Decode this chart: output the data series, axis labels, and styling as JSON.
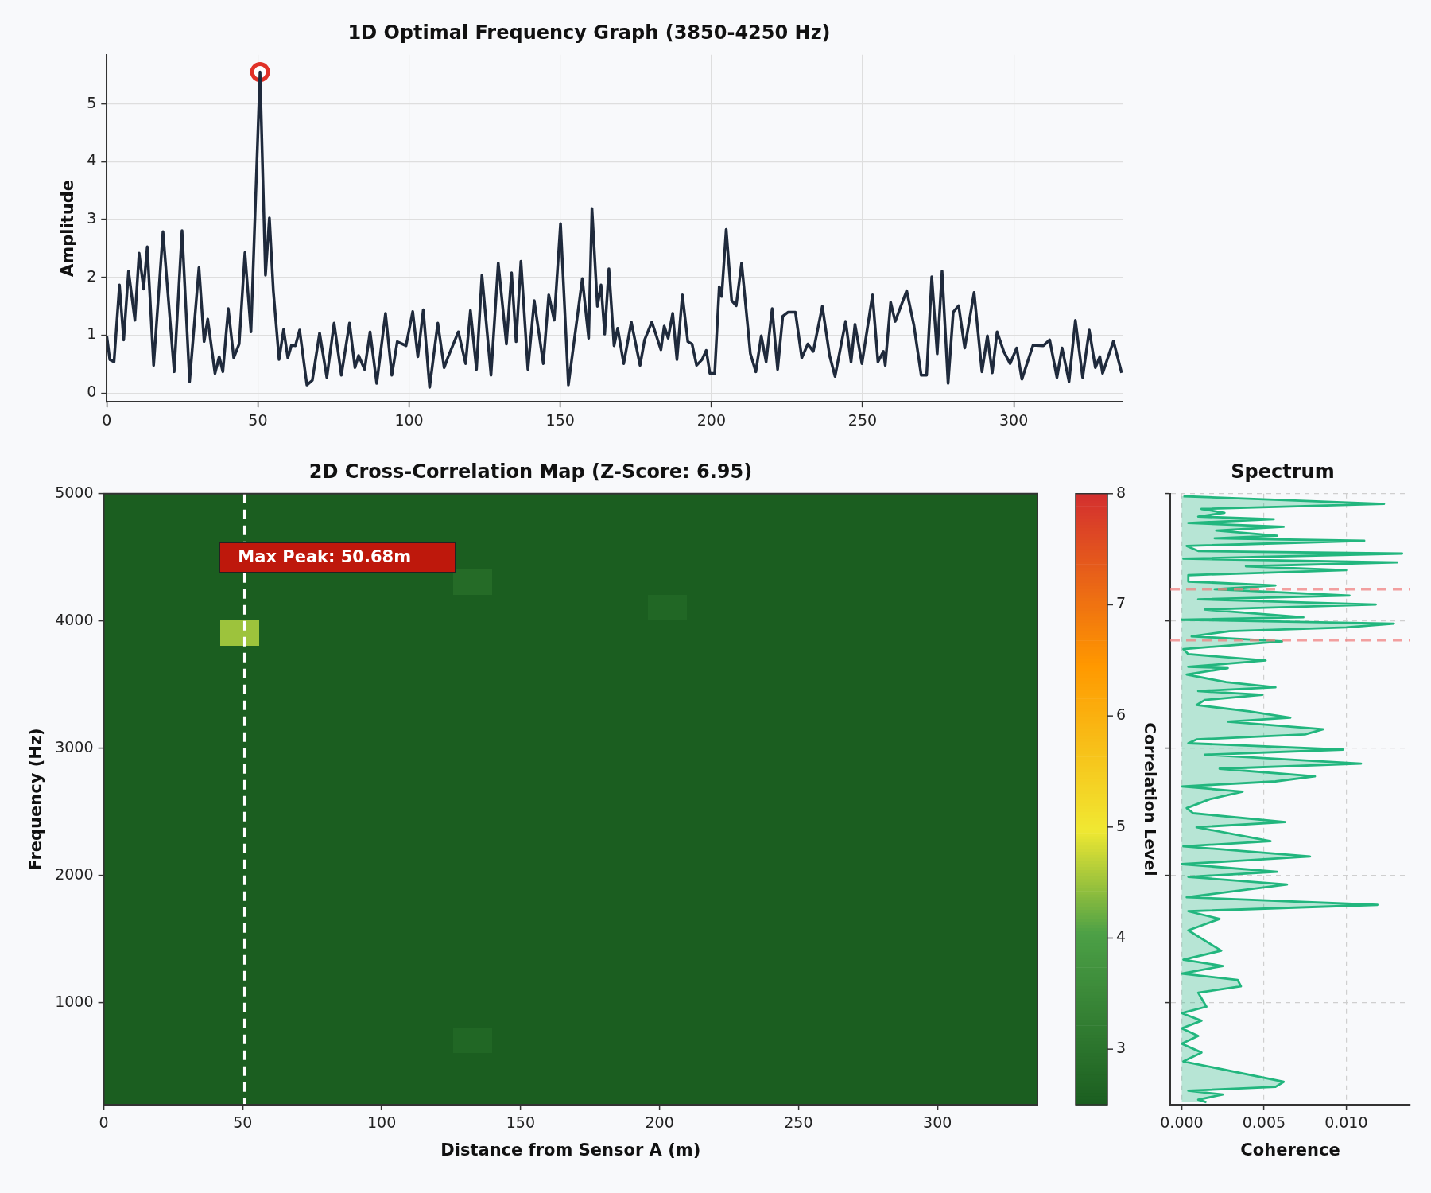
{
  "chart_data": [
    {
      "type": "line",
      "title": "1D Optimal Frequency Graph (3850-4250 Hz)",
      "ylabel": "Amplitude",
      "xlim": [
        0,
        336
      ],
      "xticks": [
        0,
        50,
        100,
        150,
        200,
        250,
        300
      ],
      "ylim": [
        -0.15,
        5.85
      ],
      "yticks": [
        0,
        1,
        2,
        3,
        4,
        5
      ],
      "grid": true,
      "x": [
        0,
        1.0,
        2.4,
        4.2,
        5.6,
        7.2,
        9.3,
        10.7,
        12.2,
        13.4,
        15.5,
        18.6,
        22.3,
        24.9,
        27.4,
        30.5,
        32.2,
        33.4,
        35.8,
        37.2,
        38.4,
        40.2,
        42.0,
        43.8,
        45.7,
        47.7,
        50.7,
        52.5,
        53.8,
        55.1,
        57.0,
        58.5,
        59.9,
        61.1,
        62.4,
        63.8,
        66.2,
        68.0,
        70.4,
        72.8,
        75.2,
        77.6,
        80.3,
        82.1,
        83.3,
        85.3,
        87.1,
        89.3,
        92.2,
        94.3,
        96.1,
        99.0,
        101.2,
        102.9,
        104.7,
        106.8,
        109.5,
        111.6,
        112.8,
        116.3,
        118.7,
        120.3,
        122.3,
        124.1,
        127.1,
        129.5,
        132.2,
        133.9,
        135.4,
        137.0,
        139.3,
        141.4,
        144.4,
        146.2,
        148.0,
        150.1,
        152.7,
        157.3,
        159.4,
        160.5,
        162.3,
        163.5,
        164.7,
        166.1,
        167.8,
        169.0,
        171.0,
        173.5,
        176.4,
        177.9,
        180.3,
        183.3,
        184.4,
        185.7,
        187.2,
        188.6,
        190.4,
        192.2,
        193.6,
        195.1,
        196.9,
        198.3,
        199.5,
        201.1,
        202.6,
        203.4,
        204.9,
        206.7,
        208.2,
        210.0,
        212.9,
        214.7,
        216.5,
        218.1,
        220.1,
        221.9,
        223.6,
        225.4,
        227.8,
        229.9,
        231.9,
        233.7,
        236.7,
        239.1,
        240.9,
        244.4,
        246.2,
        247.5,
        249.8,
        253.3,
        255.1,
        256.9,
        257.5,
        259.3,
        260.8,
        264.6,
        267.0,
        269.4,
        271.2,
        272.9,
        274.7,
        276.3,
        278.3,
        280.0,
        281.8,
        283.8,
        286.9,
        289.5,
        291.3,
        292.9,
        294.5,
        296.7,
        298.8,
        301.0,
        302.7,
        306.4,
        309.8,
        311.9,
        314.3,
        316.0,
        318.3,
        320.4,
        322.8,
        325.0,
        327.0,
        328.5,
        329.4,
        333.0,
        335.7
      ],
      "series": [
        {
          "type": "line",
          "color": "#1f2a3c",
          "values": [
            0.99,
            0.58,
            0.54,
            1.87,
            0.92,
            2.11,
            1.26,
            2.42,
            1.8,
            2.53,
            0.48,
            2.79,
            0.37,
            2.81,
            0.2,
            2.17,
            0.89,
            1.28,
            0.34,
            0.63,
            0.37,
            1.46,
            0.61,
            0.85,
            2.43,
            1.06,
            5.55,
            2.04,
            3.03,
            1.77,
            0.58,
            1.1,
            0.61,
            0.83,
            0.82,
            1.09,
            0.14,
            0.22,
            1.04,
            0.27,
            1.21,
            0.31,
            1.21,
            0.44,
            0.65,
            0.41,
            1.06,
            0.17,
            1.38,
            0.31,
            0.89,
            0.82,
            1.41,
            0.63,
            1.44,
            0.1,
            1.21,
            0.44,
            0.61,
            1.06,
            0.51,
            1.43,
            0.41,
            2.04,
            0.31,
            2.25,
            0.85,
            2.08,
            0.89,
            2.28,
            0.41,
            1.6,
            0.51,
            1.7,
            1.26,
            2.93,
            0.14,
            1.98,
            0.95,
            3.19,
            1.5,
            1.87,
            1.02,
            2.15,
            0.82,
            1.12,
            0.51,
            1.23,
            0.48,
            0.92,
            1.23,
            0.75,
            1.16,
            0.95,
            1.38,
            0.58,
            1.7,
            0.89,
            0.85,
            0.48,
            0.58,
            0.74,
            0.34,
            0.34,
            1.84,
            1.67,
            2.83,
            1.6,
            1.51,
            2.25,
            0.68,
            0.37,
            0.99,
            0.54,
            1.46,
            0.41,
            1.33,
            1.4,
            1.4,
            0.61,
            0.85,
            0.72,
            1.5,
            0.65,
            0.29,
            1.24,
            0.54,
            1.19,
            0.51,
            1.7,
            0.54,
            0.72,
            0.48,
            1.57,
            1.24,
            1.77,
            1.17,
            0.31,
            0.31,
            2.01,
            0.68,
            2.11,
            0.17,
            1.4,
            1.51,
            0.78,
            1.74,
            0.37,
            0.99,
            0.35,
            1.06,
            0.72,
            0.51,
            0.78,
            0.24,
            0.83,
            0.82,
            0.92,
            0.27,
            0.78,
            0.2,
            1.26,
            0.27,
            1.09,
            0.44,
            0.63,
            0.34,
            0.9,
            0.35
          ]
        },
        {
          "type": "scatter",
          "color": "#e03127",
          "marker": "circle",
          "x": [
            50.7
          ],
          "values": [
            5.55
          ]
        }
      ]
    },
    {
      "type": "heatmap",
      "title": "2D Cross-Correlation Map (Z-Score: 6.95)",
      "xlabel": "Distance from Sensor A (m)",
      "ylabel": "Frequency (Hz)",
      "clabel": "Correlation Level",
      "xlim": [
        0,
        336
      ],
      "xticks": [
        0,
        50,
        100,
        150,
        200,
        250,
        300
      ],
      "ylim": [
        200,
        5000
      ],
      "yticks": [
        1000,
        2000,
        3000,
        4000,
        5000
      ],
      "clim": [
        2.5,
        8
      ],
      "cticks": [
        3,
        4,
        5,
        6,
        7,
        8
      ],
      "x": [
        7,
        21,
        35,
        49,
        63,
        77,
        91,
        105,
        119,
        133,
        147,
        161,
        175,
        189,
        203,
        217,
        231,
        245,
        259,
        273,
        287,
        301,
        315,
        329
      ],
      "y": [
        4900,
        4700,
        4500,
        4300,
        4100,
        3900,
        3700,
        3500,
        3300,
        3100,
        2900,
        2700,
        2500,
        2300,
        2100,
        1900,
        1700,
        1500,
        1300,
        1100,
        900,
        700,
        500,
        300
      ],
      "cells": [
        [
          2.5,
          2.5,
          2.5,
          2.5,
          2.5,
          2.5,
          2.5,
          2.5,
          2.5,
          2.5,
          2.5,
          2.5,
          2.5,
          2.5,
          2.5,
          2.5,
          2.5,
          2.5,
          2.5,
          2.5,
          2.5,
          2.5,
          2.5,
          2.5
        ],
        [
          2.5,
          2.5,
          2.5,
          2.5,
          2.5,
          2.5,
          2.5,
          2.5,
          2.5,
          2.5,
          2.5,
          2.5,
          2.5,
          2.5,
          2.5,
          2.5,
          2.5,
          2.5,
          2.5,
          2.5,
          2.5,
          2.5,
          2.5,
          2.5
        ],
        [
          2.5,
          2.5,
          2.5,
          null,
          null,
          null,
          null,
          null,
          null,
          2.5,
          2.5,
          2.5,
          2.5,
          2.5,
          2.5,
          2.5,
          2.5,
          2.5,
          2.5,
          2.5,
          2.5,
          2.5,
          2.5,
          2.5
        ],
        [
          2.5,
          2.5,
          2.5,
          2.5,
          2.5,
          2.5,
          2.5,
          2.5,
          2.5,
          2.8,
          2.5,
          2.5,
          2.5,
          2.5,
          2.5,
          2.5,
          2.5,
          2.5,
          2.5,
          2.5,
          2.5,
          2.5,
          2.5,
          2.5
        ],
        [
          2.5,
          2.5,
          2.5,
          2.5,
          2.5,
          2.5,
          2.5,
          2.5,
          2.5,
          2.5,
          2.5,
          2.5,
          2.5,
          2.5,
          2.7,
          2.5,
          2.5,
          2.5,
          2.5,
          2.5,
          2.5,
          2.5,
          2.5,
          2.5
        ],
        [
          2.5,
          2.5,
          2.5,
          4.5,
          2.5,
          2.5,
          2.5,
          2.5,
          2.5,
          2.5,
          2.5,
          2.5,
          2.5,
          2.5,
          2.5,
          2.5,
          2.5,
          2.5,
          2.5,
          2.5,
          2.5,
          2.5,
          2.5,
          2.5
        ],
        [
          2.5,
          2.5,
          2.5,
          2.5,
          2.5,
          2.5,
          2.5,
          2.5,
          2.5,
          2.5,
          2.5,
          2.5,
          2.5,
          2.5,
          2.5,
          2.5,
          2.5,
          2.5,
          2.5,
          2.5,
          2.5,
          2.5,
          2.5,
          2.5
        ],
        [
          2.5,
          2.5,
          2.5,
          2.5,
          2.5,
          2.5,
          2.5,
          2.5,
          2.5,
          2.5,
          2.5,
          2.5,
          2.5,
          2.5,
          2.5,
          2.5,
          2.5,
          2.5,
          2.5,
          2.5,
          2.5,
          2.5,
          2.5,
          2.5
        ],
        [
          2.5,
          2.5,
          2.5,
          2.5,
          2.5,
          2.5,
          2.5,
          2.5,
          2.5,
          2.5,
          2.5,
          2.5,
          2.5,
          2.5,
          2.5,
          2.5,
          2.5,
          2.5,
          2.5,
          2.5,
          2.5,
          2.5,
          2.5,
          2.5
        ],
        [
          2.5,
          2.5,
          2.5,
          2.5,
          2.5,
          2.5,
          2.5,
          2.5,
          2.5,
          2.5,
          2.5,
          2.5,
          2.5,
          2.5,
          2.5,
          2.5,
          2.5,
          2.5,
          2.5,
          2.5,
          2.5,
          2.5,
          2.5,
          2.5
        ],
        [
          2.5,
          2.5,
          2.5,
          2.5,
          2.5,
          2.5,
          2.5,
          2.5,
          2.5,
          2.5,
          2.5,
          2.5,
          2.5,
          2.5,
          2.5,
          2.5,
          2.5,
          2.5,
          2.5,
          2.5,
          2.5,
          2.5,
          2.5,
          2.5
        ],
        [
          2.5,
          2.5,
          2.5,
          2.5,
          2.5,
          2.5,
          2.5,
          2.5,
          2.5,
          2.5,
          2.5,
          2.5,
          2.5,
          2.5,
          2.5,
          2.5,
          2.5,
          2.5,
          2.5,
          2.5,
          2.5,
          2.5,
          2.5,
          2.5
        ],
        [
          2.5,
          2.5,
          2.5,
          2.5,
          2.5,
          2.5,
          2.5,
          2.5,
          2.5,
          2.5,
          2.5,
          2.5,
          2.5,
          2.5,
          2.5,
          2.5,
          2.5,
          2.5,
          2.5,
          2.5,
          2.5,
          2.5,
          2.5,
          2.5
        ],
        [
          2.5,
          2.5,
          2.5,
          2.5,
          2.5,
          2.5,
          2.5,
          2.5,
          2.5,
          2.5,
          2.5,
          2.5,
          2.5,
          2.5,
          2.5,
          2.5,
          2.5,
          2.5,
          2.5,
          2.5,
          2.5,
          2.5,
          2.5,
          2.5
        ],
        [
          2.5,
          2.5,
          2.5,
          2.5,
          2.5,
          2.5,
          2.5,
          2.5,
          2.5,
          2.5,
          2.5,
          2.5,
          2.5,
          2.5,
          2.5,
          2.5,
          2.5,
          2.5,
          2.5,
          2.5,
          2.5,
          2.5,
          2.5,
          2.5
        ],
        [
          2.5,
          2.5,
          2.5,
          2.5,
          2.5,
          2.5,
          2.5,
          2.5,
          2.5,
          2.5,
          2.5,
          2.5,
          2.5,
          2.5,
          2.5,
          2.5,
          2.5,
          2.5,
          2.5,
          2.5,
          2.5,
          2.5,
          2.5,
          2.5
        ],
        [
          2.5,
          2.5,
          2.5,
          2.5,
          2.5,
          2.5,
          2.5,
          2.5,
          2.5,
          2.5,
          2.5,
          2.5,
          2.5,
          2.5,
          2.5,
          2.5,
          2.5,
          2.5,
          2.5,
          2.5,
          2.5,
          2.5,
          2.5,
          2.5
        ],
        [
          2.5,
          2.5,
          2.5,
          2.5,
          2.5,
          2.5,
          2.5,
          2.5,
          2.5,
          2.5,
          2.5,
          2.5,
          2.5,
          2.5,
          2.5,
          2.5,
          2.5,
          2.5,
          2.5,
          2.5,
          2.5,
          2.5,
          2.5,
          2.5
        ],
        [
          2.5,
          2.5,
          2.5,
          2.5,
          2.5,
          2.5,
          2.5,
          2.5,
          2.5,
          2.5,
          2.5,
          2.5,
          2.5,
          2.5,
          2.5,
          2.5,
          2.5,
          2.5,
          2.5,
          2.5,
          2.5,
          2.5,
          2.5,
          2.5
        ],
        [
          2.5,
          2.5,
          2.5,
          2.5,
          2.5,
          2.5,
          2.5,
          2.5,
          2.5,
          2.5,
          2.5,
          2.5,
          2.5,
          2.5,
          2.5,
          2.5,
          2.5,
          2.5,
          2.5,
          2.5,
          2.5,
          2.5,
          2.5,
          2.5
        ],
        [
          2.5,
          2.5,
          2.5,
          2.5,
          2.5,
          2.5,
          2.5,
          2.5,
          2.5,
          2.5,
          2.5,
          2.5,
          2.5,
          2.5,
          2.5,
          2.5,
          2.5,
          2.5,
          2.5,
          2.5,
          2.5,
          2.5,
          2.5,
          2.5
        ],
        [
          2.5,
          2.5,
          2.5,
          2.5,
          2.5,
          2.5,
          2.5,
          2.5,
          2.5,
          2.7,
          2.5,
          2.5,
          2.5,
          2.5,
          2.5,
          2.5,
          2.5,
          2.5,
          2.5,
          2.5,
          2.5,
          2.5,
          2.5,
          2.5
        ],
        [
          2.5,
          2.5,
          2.5,
          2.5,
          2.5,
          2.5,
          2.5,
          2.5,
          2.5,
          2.5,
          2.5,
          2.5,
          2.5,
          2.5,
          2.5,
          2.5,
          2.5,
          2.5,
          2.5,
          2.5,
          2.5,
          2.5,
          2.5,
          2.5
        ],
        [
          2.5,
          2.5,
          2.5,
          2.5,
          2.5,
          2.5,
          2.5,
          2.5,
          2.5,
          2.5,
          2.5,
          2.5,
          2.5,
          2.5,
          2.5,
          2.5,
          2.5,
          2.5,
          2.5,
          2.5,
          2.5,
          2.5,
          2.5,
          2.5
        ]
      ],
      "ref_lines": [
        {
          "axis": "x",
          "value": 50.68,
          "color": "#ffffff",
          "line_style": "dashed"
        }
      ],
      "annotations": [
        "Max Peak: 50.68m"
      ]
    },
    {
      "type": "line",
      "orientation": "horizontal",
      "title": "Spectrum",
      "xlabel": "Coherence",
      "xlim": [
        -0.0007,
        0.0139
      ],
      "xticks": [
        {
          "value": 0,
          "label": "0.000"
        },
        {
          "value": 0.005,
          "label": "0.005"
        },
        {
          "value": 0.01,
          "label": "0.010"
        }
      ],
      "ylim": [
        200,
        5000
      ],
      "yticks": [
        1000,
        2000,
        3000,
        4000,
        5000
      ],
      "tick_labels": "x",
      "grid": true,
      "ref_lines": [
        {
          "axis": "y",
          "value": 3850,
          "color": "#f08080",
          "line_style": "dashed"
        },
        {
          "axis": "y",
          "value": 4250,
          "color": "#f08080",
          "line_style": "dashed"
        }
      ],
      "series": [
        {
          "type": "area",
          "color": "#22b67e",
          "x": [
            4980,
            4920,
            4880,
            4850,
            4820,
            4800,
            4770,
            4740,
            4710,
            4670,
            4650,
            4630,
            4590,
            4550,
            4530,
            4490,
            4460,
            4430,
            4400,
            4360,
            4310,
            4280,
            4250,
            4200,
            4170,
            4130,
            4090,
            4030,
            4010,
            3980,
            3950,
            3920,
            3880,
            3840,
            3780,
            3740,
            3690,
            3640,
            3630,
            3580,
            3520,
            3480,
            3450,
            3420,
            3380,
            3340,
            3290,
            3240,
            3210,
            3150,
            3110,
            3070,
            3040,
            2990,
            2950,
            2880,
            2840,
            2780,
            2740,
            2700,
            2660,
            2600,
            2530,
            2490,
            2420,
            2380,
            2270,
            2230,
            2150,
            2090,
            2030,
            1990,
            1930,
            1830,
            1770,
            1720,
            1660,
            1570,
            1410,
            1340,
            1290,
            1230,
            1180,
            1130,
            1080,
            970,
            920,
            860,
            800,
            740,
            680,
            610,
            540,
            380,
            340,
            310,
            280,
            240,
            220
          ],
          "values": [
            0.0001,
            0.0123,
            0.0012,
            0.0026,
            0.001,
            0.0056,
            0.0004,
            0.0062,
            0.0021,
            0.0058,
            0.002,
            0.0111,
            0.0003,
            0.001,
            0.0134,
            0.0001,
            0.0131,
            0.0039,
            0.01,
            0.0004,
            0.0004,
            0.0057,
            0.002,
            0.0102,
            0.001,
            0.0118,
            0.0014,
            0.0074,
            0,
            0.0129,
            0.01,
            0.0029,
            0.0006,
            0.0061,
            0.0001,
            0.0004,
            0.0051,
            0.0004,
            0.0028,
            0.0003,
            0.0027,
            0.0057,
            0.001,
            0.0049,
            0.0014,
            0.0009,
            0.0041,
            0.0066,
            0.0028,
            0.0086,
            0.0075,
            0.0009,
            0.0004,
            0.0098,
            0.0014,
            0.0109,
            0.0023,
            0.0081,
            0.0057,
            0,
            0.0037,
            0.0017,
            0.0003,
            0.0007,
            0.0063,
            0.0009,
            0.0054,
            0.0001,
            0.0078,
            0,
            0.0058,
            0.0004,
            0.0064,
            0.0003,
            0.0119,
            0.0004,
            0.0023,
            0.0004,
            0.0024,
            0.0001,
            0.0025,
            0,
            0.0034,
            0.0036,
            0.001,
            0.0015,
            0,
            0.0012,
            0,
            0.001,
            0,
            0.0012,
            0.0001,
            0.0062,
            0.0057,
            0.0004,
            0.0025,
            0.001,
            0.0015
          ]
        }
      ]
    }
  ]
}
